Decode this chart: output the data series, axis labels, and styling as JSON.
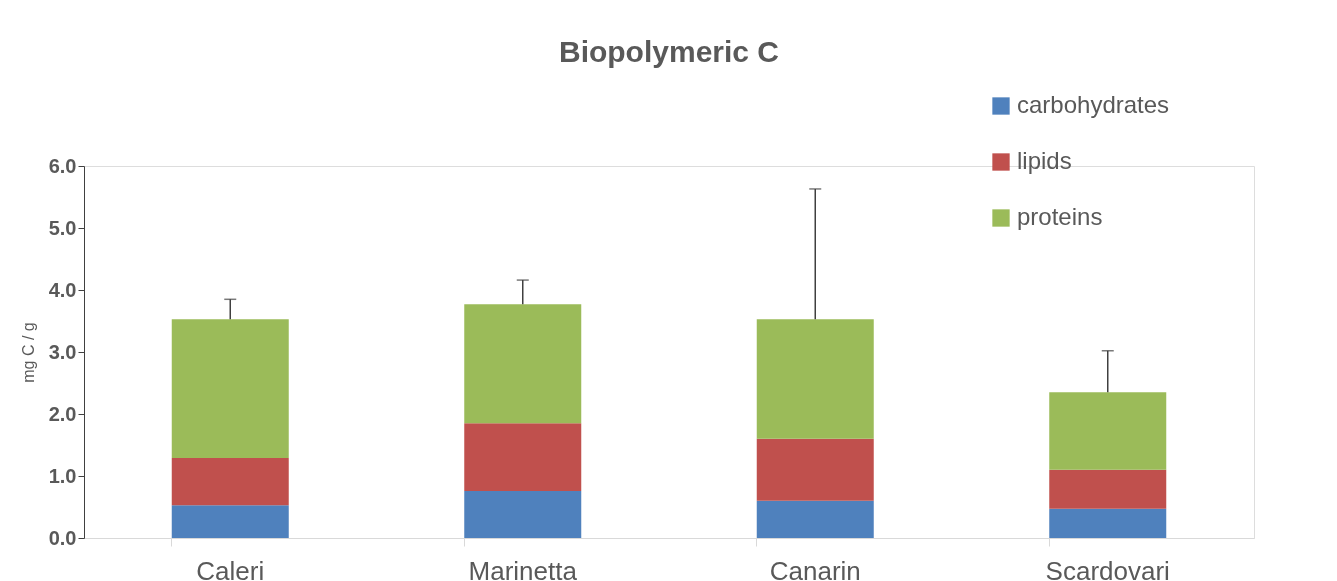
{
  "chart_data": {
    "type": "bar",
    "stacked": true,
    "title": "Biopolymeric C",
    "ylabel": "mg C / g",
    "categories": [
      "Caleri",
      "Marinetta",
      "Canarin",
      "Scardovari"
    ],
    "series": [
      {
        "name": "carbohydrates",
        "color": "#4f81bd",
        "values": [
          0.53,
          0.76,
          0.6,
          0.47
        ]
      },
      {
        "name": "lipids",
        "color": "#c0504d",
        "values": [
          0.76,
          1.09,
          1.0,
          0.63
        ]
      },
      {
        "name": "proteins",
        "color": "#9bbb59",
        "values": [
          2.24,
          1.92,
          1.93,
          1.25
        ],
        "errors": [
          [
            3.53,
            3.85
          ],
          [
            3.77,
            4.16
          ],
          [
            3.53,
            5.63
          ],
          [
            2.35,
            3.02
          ]
        ]
      }
    ],
    "ylim": [
      0,
      6
    ],
    "yticks": [
      {
        "value": 0,
        "label": "0.0"
      },
      {
        "value": 1,
        "label": "1.0"
      },
      {
        "value": 2,
        "label": "2.0"
      },
      {
        "value": 3,
        "label": "3.0"
      },
      {
        "value": 4,
        "label": "4.0"
      },
      {
        "value": 5,
        "label": "5.0"
      },
      {
        "value": 6,
        "label": "6.0"
      }
    ],
    "legend": "top right",
    "grid": false
  }
}
